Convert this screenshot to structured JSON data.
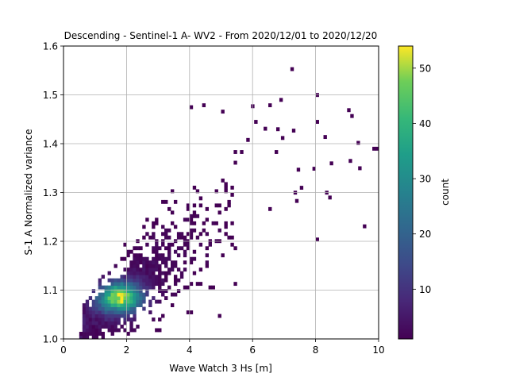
{
  "chart_data": {
    "type": "heatmap",
    "title": "Descending - Sentinel-1 A- WV2 - From 2020/12/01 to 2020/12/20",
    "xlabel": "Wave Watch 3 Hs [m]",
    "ylabel": "S-1 A Normalized variance",
    "xlim": [
      0,
      10
    ],
    "ylim": [
      1.0,
      1.6
    ],
    "xticks": [
      "0",
      "2",
      "4",
      "6",
      "8",
      "10"
    ],
    "yticks": [
      "1.0",
      "1.1",
      "1.2",
      "1.3",
      "1.4",
      "1.5",
      "1.6"
    ],
    "grid": true,
    "colormap": "viridis",
    "colorbar": {
      "label": "count",
      "range": [
        1,
        54
      ],
      "ticks": [
        "10",
        "20",
        "30",
        "40",
        "50"
      ]
    },
    "density_model": {
      "trend": "variance rises roughly linearly with Hs",
      "peak": {
        "x": 1.8,
        "y": 1.085,
        "count": 54
      },
      "points_sparse": [
        {
          "x": 7.25,
          "y": 1.553
        },
        {
          "x": 8.05,
          "y": 1.5
        },
        {
          "x": 6.9,
          "y": 1.49
        },
        {
          "x": 6.55,
          "y": 1.479
        },
        {
          "x": 9.05,
          "y": 1.469
        },
        {
          "x": 9.15,
          "y": 1.457
        },
        {
          "x": 8.05,
          "y": 1.445
        },
        {
          "x": 7.3,
          "y": 1.427
        },
        {
          "x": 8.3,
          "y": 1.414
        },
        {
          "x": 9.35,
          "y": 1.402
        },
        {
          "x": 9.85,
          "y": 1.39
        },
        {
          "x": 9.95,
          "y": 1.39
        },
        {
          "x": 9.1,
          "y": 1.365
        },
        {
          "x": 9.4,
          "y": 1.35
        },
        {
          "x": 8.5,
          "y": 1.36
        },
        {
          "x": 7.95,
          "y": 1.349
        },
        {
          "x": 7.45,
          "y": 1.347
        },
        {
          "x": 8.35,
          "y": 1.3
        },
        {
          "x": 8.45,
          "y": 1.29
        },
        {
          "x": 7.55,
          "y": 1.31
        },
        {
          "x": 7.35,
          "y": 1.3
        },
        {
          "x": 7.4,
          "y": 1.283
        },
        {
          "x": 9.55,
          "y": 1.231
        },
        {
          "x": 8.05,
          "y": 1.204
        },
        {
          "x": 4.05,
          "y": 1.475
        },
        {
          "x": 4.45,
          "y": 1.479
        },
        {
          "x": 5.05,
          "y": 1.466
        },
        {
          "x": 6.0,
          "y": 1.477
        },
        {
          "x": 6.1,
          "y": 1.445
        },
        {
          "x": 6.4,
          "y": 1.431
        },
        {
          "x": 6.8,
          "y": 1.43
        },
        {
          "x": 6.95,
          "y": 1.412
        },
        {
          "x": 5.85,
          "y": 1.408
        }
      ]
    }
  }
}
